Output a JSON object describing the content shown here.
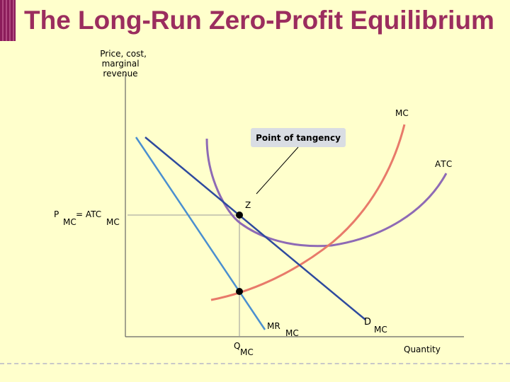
{
  "title": "The Long-Run Zero-Profit Equilibrium",
  "y_axis_label": [
    "Price, cost,",
    "marginal",
    "revenue"
  ],
  "x_axis_label": "Quantity",
  "curves": {
    "mc": "MC",
    "atc": "ATC",
    "demand": "D",
    "demand_sub": "MC",
    "mr": "MR",
    "mr_sub": "MC"
  },
  "point_z": "Z",
  "callout": "Point of tangency",
  "price_label": {
    "p": "P",
    "p_sub": "MC",
    "eq": "= ATC",
    "atc_sub": "MC"
  },
  "quantity_label": {
    "q": "Q",
    "q_sub": "MC"
  },
  "colors": {
    "title": "#9b2d5e",
    "mc": "#e87a6a",
    "atc": "#8e6ab5",
    "demand": "#2e4a9e",
    "mr": "#4a8fd0",
    "callout_bg": "#d9dde3",
    "guide": "#9a9a9a"
  }
}
